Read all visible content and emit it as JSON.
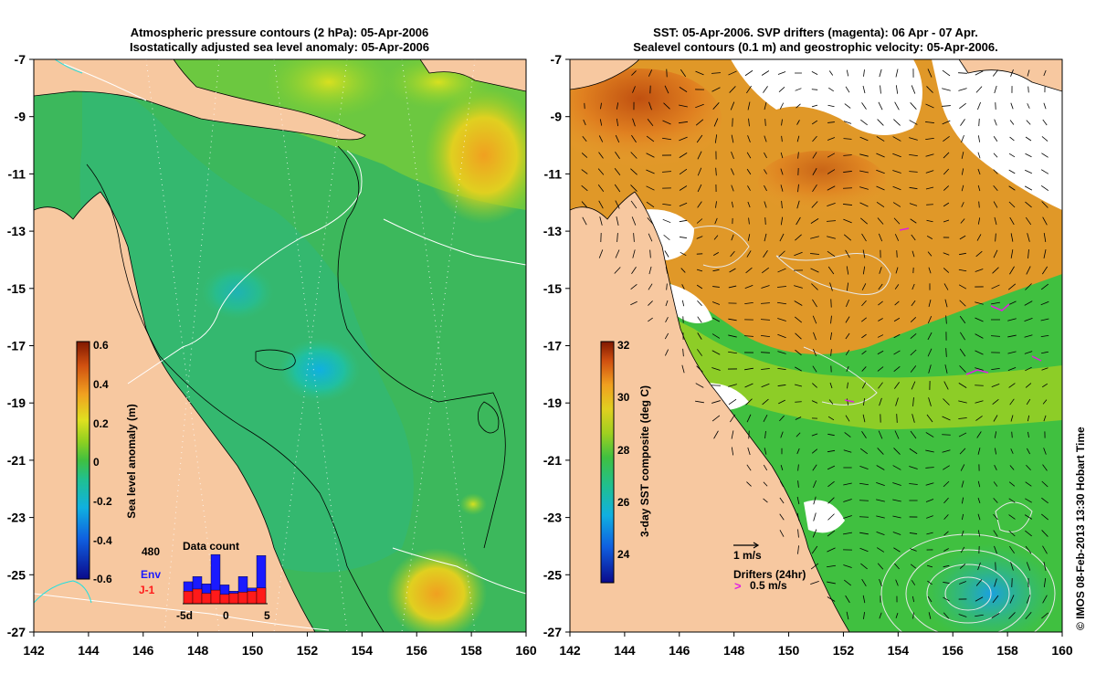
{
  "chart_data": [
    {
      "type": "heatmap",
      "id": "left",
      "title_line1": "Atmospheric pressure contours (2 hPa): 05-Apr-2006",
      "title_line2": "Isostatically adjusted sea level anomaly: 05-Apr-2006",
      "x_ticks": [
        "142",
        "144",
        "146",
        "148",
        "150",
        "152",
        "154",
        "156",
        "158",
        "160"
      ],
      "y_ticks": [
        "-7",
        "-9",
        "-11",
        "-13",
        "-15",
        "-17",
        "-19",
        "-21",
        "-23",
        "-25",
        "-27"
      ],
      "xlim": [
        142,
        160
      ],
      "ylim": [
        -27,
        -7
      ],
      "colorbar": {
        "label": "Sea level anomaly (m)",
        "ticks": [
          "0.6",
          "0.4",
          "0.2",
          "0",
          "-0.2",
          "-0.4",
          "-0.6"
        ],
        "range": [
          -0.6,
          0.6
        ]
      },
      "data_count": {
        "title": "Data count",
        "max_label": "480",
        "series": [
          {
            "name": "Env",
            "color": "#1a1aff",
            "values": [
              210,
              260,
              190,
              470,
              180,
              120,
              260,
              150,
              460
            ]
          },
          {
            "name": "J-1",
            "color": "#ff1a1a",
            "values": [
              120,
              140,
              100,
              130,
              90,
              100,
              110,
              120,
              150
            ]
          }
        ],
        "x_ticks": [
          "-5d",
          "0",
          "5"
        ]
      }
    },
    {
      "type": "heatmap",
      "id": "right",
      "title_line1": "SST: 05-Apr-2006. SVP drifters (magenta): 06 Apr - 07 Apr.",
      "title_line2": "Sealevel contours (0.1 m) and geostrophic velocity: 05-Apr-2006.",
      "x_ticks": [
        "142",
        "144",
        "146",
        "148",
        "150",
        "152",
        "154",
        "156",
        "158",
        "160"
      ],
      "y_ticks": [
        "-7",
        "-9",
        "-11",
        "-13",
        "-15",
        "-17",
        "-19",
        "-21",
        "-23",
        "-25",
        "-27"
      ],
      "xlim": [
        142,
        160
      ],
      "ylim": [
        -27,
        -7
      ],
      "colorbar": {
        "label": "3-day SST composite (deg C)",
        "ticks": [
          "32",
          "30",
          "28",
          "26",
          "24"
        ],
        "range": [
          23,
          32
        ]
      },
      "velocity_scale_label": "1 m/s",
      "drifters_label": "Drifters (24hr)",
      "drifter_speed_label": "0.5 m/s"
    }
  ],
  "credit": "© IMOS 08-Feb-2013 13:30 Hobart Time",
  "colors": {
    "land": "#f7c8a0",
    "ocean_green": "#3cb85c",
    "cloud": "#ffffff",
    "drifter": "#e020e0"
  }
}
